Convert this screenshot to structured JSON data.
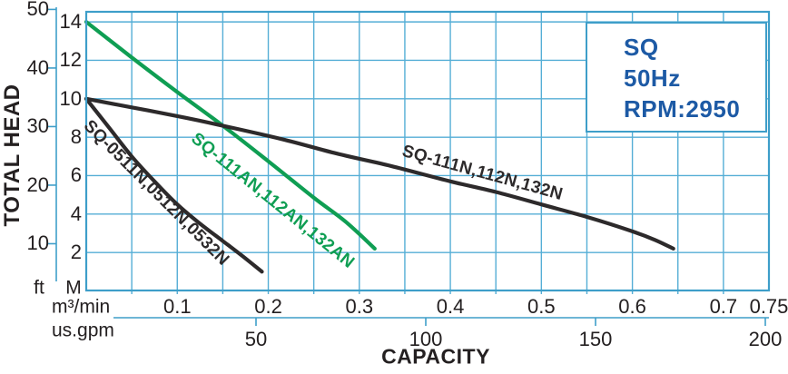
{
  "info_box": {
    "lines": [
      "SQ",
      "50Hz",
      "RPM:2950"
    ]
  },
  "axes": {
    "x": {
      "title": "CAPACITY",
      "m3min_unit": "m³/min",
      "usgpm_unit": "us.gpm"
    },
    "y": {
      "title": "TOTAL HEAD",
      "ft_unit": "ft",
      "m_unit": "M"
    }
  },
  "colors": {
    "grid": "#55aed6",
    "frame": "#3e9ec9",
    "text": "#242021",
    "info_text": "#1d5aa5",
    "green_curve": "#0f9e53",
    "black_curve": "#2d2a2b"
  },
  "chart_data": {
    "type": "line",
    "title": "SQ 50Hz RPM:2950 pump performance curves",
    "xlabel": "CAPACITY",
    "ylabel": "TOTAL HEAD",
    "grid": true,
    "x_scales": [
      {
        "unit": "m³/min",
        "range": [
          0,
          0.75
        ],
        "tick_labels": [
          "0.1",
          "0.2",
          "0.3",
          "0.4",
          "0.5",
          "0.6",
          "0.7",
          "0.75"
        ]
      },
      {
        "unit": "us.gpm",
        "range": [
          0,
          200
        ],
        "tick_labels": [
          "50",
          "100",
          "150",
          "200"
        ]
      }
    ],
    "y_scales": [
      {
        "unit": "M",
        "range": [
          0,
          14.5
        ],
        "tick_labels": [
          "14",
          "12",
          "10",
          "8",
          "6",
          "4",
          "2"
        ]
      },
      {
        "unit": "ft",
        "range": [
          0,
          48
        ],
        "tick_labels": [
          "50",
          "40",
          "30",
          "20",
          "10"
        ]
      }
    ],
    "grid_step_x_m3min": 0.05,
    "grid_step_y_m": 2,
    "series": [
      {
        "name": "SQ-0511N,0512N,0532N",
        "color": "#2d2a2b",
        "units": [
          "m3/min",
          "M"
        ],
        "points": [
          [
            0,
            10
          ],
          [
            0.025,
            8.5
          ],
          [
            0.05,
            7.0
          ],
          [
            0.075,
            5.7
          ],
          [
            0.1,
            4.5
          ],
          [
            0.125,
            3.5
          ],
          [
            0.15,
            2.6
          ],
          [
            0.172,
            1.8
          ],
          [
            0.193,
            1.0
          ]
        ]
      },
      {
        "name": "SQ-111AN,112AN,132AN",
        "color": "#0f9e53",
        "units": [
          "m3/min",
          "M"
        ],
        "points": [
          [
            0,
            14
          ],
          [
            0.05,
            12.15
          ],
          [
            0.1,
            10.35
          ],
          [
            0.15,
            8.6
          ],
          [
            0.2,
            6.75
          ],
          [
            0.25,
            4.85
          ],
          [
            0.285,
            3.6
          ],
          [
            0.317,
            2.2
          ]
        ]
      },
      {
        "name": "SQ-111N,112N,132N",
        "color": "#2d2a2b",
        "units": [
          "m3/min",
          "M"
        ],
        "points": [
          [
            0,
            10
          ],
          [
            0.05,
            9.55
          ],
          [
            0.1,
            9.1
          ],
          [
            0.145,
            8.65
          ],
          [
            0.215,
            7.9
          ],
          [
            0.275,
            7.15
          ],
          [
            0.335,
            6.5
          ],
          [
            0.4,
            5.7
          ],
          [
            0.45,
            5.15
          ],
          [
            0.5,
            4.5
          ],
          [
            0.55,
            3.85
          ],
          [
            0.6,
            3.1
          ],
          [
            0.625,
            2.65
          ],
          [
            0.645,
            2.2
          ]
        ]
      }
    ]
  }
}
